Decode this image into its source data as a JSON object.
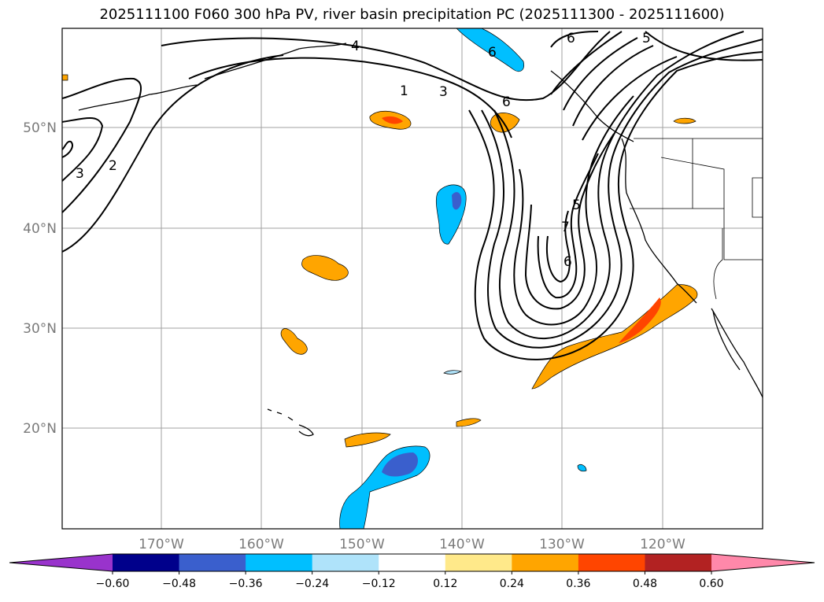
{
  "title": "2025111100 F060 300 hPa PV, river basin precipitation PC (2025111300 - 2025111600)",
  "latitude_labels": [
    "50°N",
    "40°N",
    "30°N",
    "20°N"
  ],
  "longitude_labels": [
    "170°W",
    "160°W",
    "150°W",
    "140°W",
    "130°W",
    "120°W"
  ],
  "contour_labels": [
    "4",
    "6",
    "5",
    "1",
    "3",
    "6",
    "3",
    "2",
    "5",
    "7",
    "6",
    "6"
  ],
  "colorbar": {
    "ticks": [
      "−0.60",
      "−0.48",
      "−0.36",
      "−0.24",
      "−0.12",
      "0.12",
      "0.24",
      "0.36",
      "0.48",
      "0.60"
    ],
    "colors": [
      "#9933cc",
      "#00008b",
      "#3a5fcd",
      "#00bfff",
      "#afe3fa",
      "#ffffff",
      "#ffe98a",
      "#ffa500",
      "#ff4500",
      "#b22222",
      "#ff88aa"
    ]
  },
  "colors": {
    "contour": "#000000",
    "gridline": "#a0a0a0",
    "coastline": "#000000"
  }
}
